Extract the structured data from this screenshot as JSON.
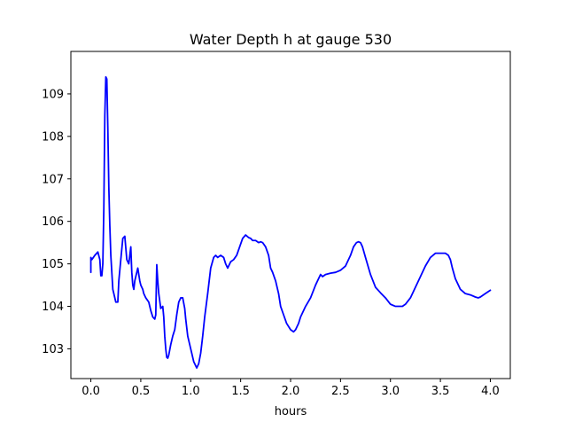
{
  "chart_data": {
    "type": "line",
    "title": "Water Depth h at gauge 530",
    "xlabel": "hours",
    "ylabel": "",
    "xlim": [
      -0.2,
      4.2
    ],
    "ylim": [
      102.3,
      110.0
    ],
    "xticks": [
      0.0,
      0.5,
      1.0,
      1.5,
      2.0,
      2.5,
      3.0,
      3.5,
      4.0
    ],
    "xtick_labels": [
      "0.0",
      "0.5",
      "1.0",
      "1.5",
      "2.0",
      "2.5",
      "3.0",
      "3.5",
      "4.0"
    ],
    "yticks": [
      103,
      104,
      105,
      106,
      107,
      108,
      109
    ],
    "ytick_labels": [
      "103",
      "104",
      "105",
      "106",
      "107",
      "108",
      "109"
    ],
    "grid": false,
    "series": [
      {
        "color": "#0000ff",
        "x": [
          0.0,
          0.0,
          0.01,
          0.04,
          0.07,
          0.09,
          0.1,
          0.11,
          0.12,
          0.13,
          0.14,
          0.15,
          0.16,
          0.17,
          0.18,
          0.19,
          0.2,
          0.22,
          0.25,
          0.27,
          0.28,
          0.3,
          0.32,
          0.34,
          0.36,
          0.38,
          0.4,
          0.41,
          0.42,
          0.43,
          0.44,
          0.45,
          0.47,
          0.49,
          0.5,
          0.51,
          0.52,
          0.53,
          0.55,
          0.58,
          0.6,
          0.62,
          0.64,
          0.65,
          0.66,
          0.67,
          0.68,
          0.7,
          0.72,
          0.73,
          0.74,
          0.75,
          0.76,
          0.77,
          0.78,
          0.8,
          0.82,
          0.84,
          0.86,
          0.88,
          0.9,
          0.92,
          0.94,
          0.95,
          0.97,
          1.0,
          1.03,
          1.06,
          1.08,
          1.1,
          1.12,
          1.14,
          1.17,
          1.2,
          1.23,
          1.25,
          1.27,
          1.3,
          1.33,
          1.35,
          1.37,
          1.4,
          1.43,
          1.46,
          1.49,
          1.52,
          1.55,
          1.58,
          1.6,
          1.62,
          1.65,
          1.68,
          1.7,
          1.72,
          1.75,
          1.78,
          1.8,
          1.82,
          1.85,
          1.88,
          1.9,
          1.93,
          1.96,
          2.0,
          2.03,
          2.05,
          2.08,
          2.1,
          2.15,
          2.2,
          2.25,
          2.28,
          2.3,
          2.32,
          2.35,
          2.4,
          2.45,
          2.5,
          2.55,
          2.6,
          2.63,
          2.66,
          2.68,
          2.7,
          2.72,
          2.75,
          2.8,
          2.85,
          2.9,
          2.95,
          3.0,
          3.05,
          3.08,
          3.1,
          3.12,
          3.15,
          3.2,
          3.25,
          3.3,
          3.35,
          3.4,
          3.45,
          3.5,
          3.53,
          3.55,
          3.58,
          3.6,
          3.62,
          3.65,
          3.7,
          3.75,
          3.8,
          3.85,
          3.88,
          3.9,
          3.95,
          4.0
        ],
        "y": [
          104.8,
          105.15,
          105.1,
          105.2,
          105.28,
          105.1,
          104.72,
          104.72,
          105.0,
          106.3,
          108.5,
          109.4,
          109.35,
          108.2,
          106.8,
          105.9,
          105.2,
          104.4,
          104.1,
          104.1,
          104.6,
          105.1,
          105.6,
          105.65,
          105.1,
          105.0,
          105.4,
          104.8,
          104.5,
          104.4,
          104.6,
          104.7,
          104.9,
          104.6,
          104.5,
          104.45,
          104.4,
          104.3,
          104.2,
          104.1,
          103.9,
          103.75,
          103.7,
          103.8,
          104.98,
          104.6,
          104.3,
          103.95,
          104.0,
          103.75,
          103.3,
          103.0,
          102.8,
          102.78,
          102.85,
          103.1,
          103.3,
          103.45,
          103.8,
          104.1,
          104.2,
          104.2,
          103.95,
          103.7,
          103.3,
          103.0,
          102.7,
          102.55,
          102.65,
          102.9,
          103.3,
          103.75,
          104.3,
          104.9,
          105.15,
          105.2,
          105.15,
          105.2,
          105.15,
          105.0,
          104.9,
          105.05,
          105.1,
          105.2,
          105.4,
          105.6,
          105.68,
          105.62,
          105.6,
          105.55,
          105.55,
          105.5,
          105.52,
          105.5,
          105.4,
          105.2,
          104.9,
          104.8,
          104.6,
          104.3,
          104.0,
          103.8,
          103.6,
          103.45,
          103.4,
          103.45,
          103.6,
          103.75,
          104.0,
          104.2,
          104.5,
          104.65,
          104.75,
          104.7,
          104.75,
          104.78,
          104.8,
          104.85,
          104.95,
          105.2,
          105.4,
          105.5,
          105.52,
          105.5,
          105.4,
          105.15,
          104.75,
          104.45,
          104.32,
          104.2,
          104.05,
          104.0,
          104.0,
          104.0,
          104.0,
          104.05,
          104.2,
          104.45,
          104.7,
          104.95,
          105.15,
          105.25,
          105.25,
          105.25,
          105.25,
          105.2,
          105.1,
          104.9,
          104.65,
          104.4,
          104.3,
          104.27,
          104.22,
          104.2,
          104.22,
          104.3,
          104.38
        ]
      }
    ]
  }
}
